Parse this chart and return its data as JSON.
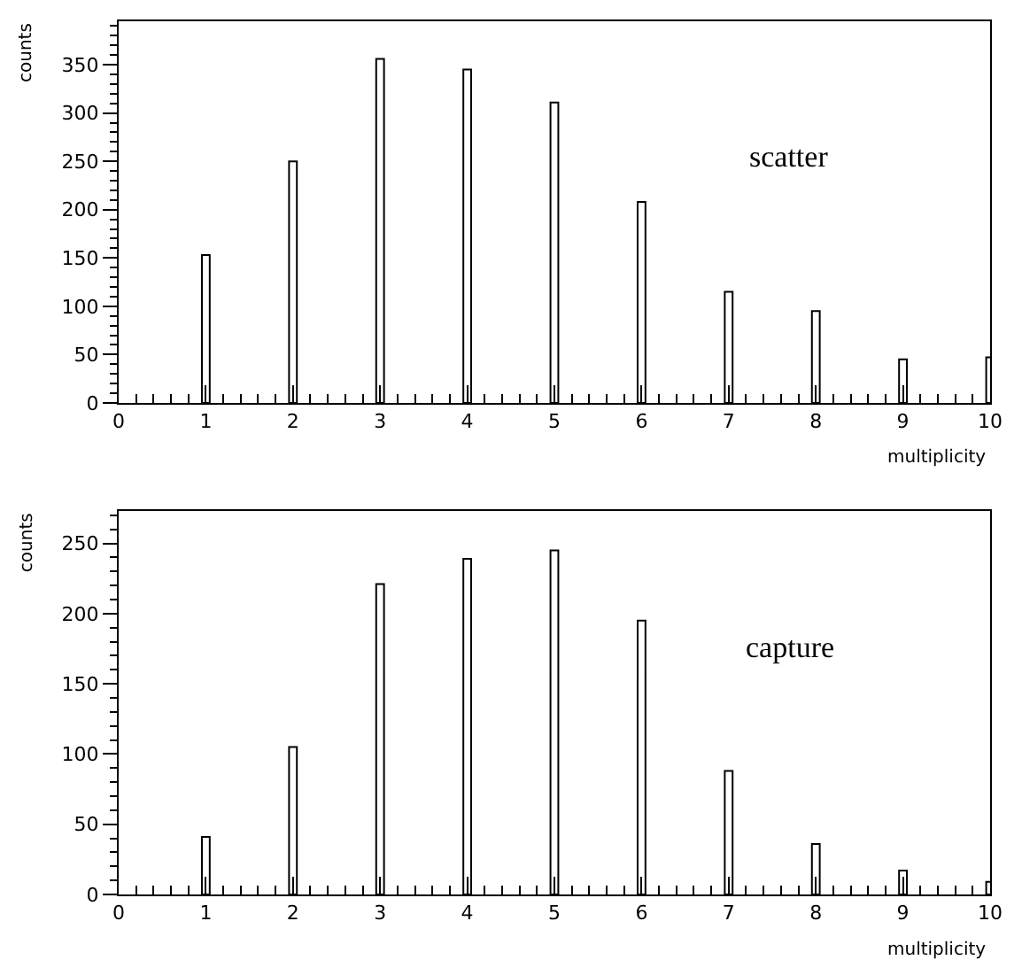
{
  "chart_data": [
    {
      "type": "bar",
      "x": [
        1,
        2,
        3,
        4,
        5,
        6,
        7,
        8,
        9,
        10
      ],
      "values": [
        153,
        250,
        356,
        345,
        311,
        208,
        115,
        95,
        45,
        47
      ],
      "color": "#ffffff",
      "xlabel": "multiplicity",
      "ylabel": "counts",
      "annotations": [
        "scatter"
      ],
      "xlim": [
        0,
        10
      ],
      "xticks": [
        0,
        1,
        2,
        3,
        4,
        5,
        6,
        7,
        8,
        9,
        10
      ],
      "ylim": [
        0,
        395
      ],
      "yticks": [
        0,
        50,
        100,
        150,
        200,
        250,
        300,
        350
      ]
    },
    {
      "type": "bar",
      "x": [
        1,
        2,
        3,
        4,
        5,
        6,
        7,
        8,
        9,
        10
      ],
      "values": [
        41,
        105,
        221,
        239,
        245,
        195,
        88,
        36,
        17,
        9
      ],
      "color": "#ffffff",
      "xlabel": "multiplicity",
      "ylabel": "counts",
      "annotations": [
        "capture"
      ],
      "xlim": [
        0,
        10
      ],
      "xticks": [
        0,
        1,
        2,
        3,
        4,
        5,
        6,
        7,
        8,
        9,
        10
      ],
      "ylim": [
        0,
        273
      ],
      "yticks": [
        0,
        50,
        100,
        150,
        200,
        250
      ]
    }
  ]
}
